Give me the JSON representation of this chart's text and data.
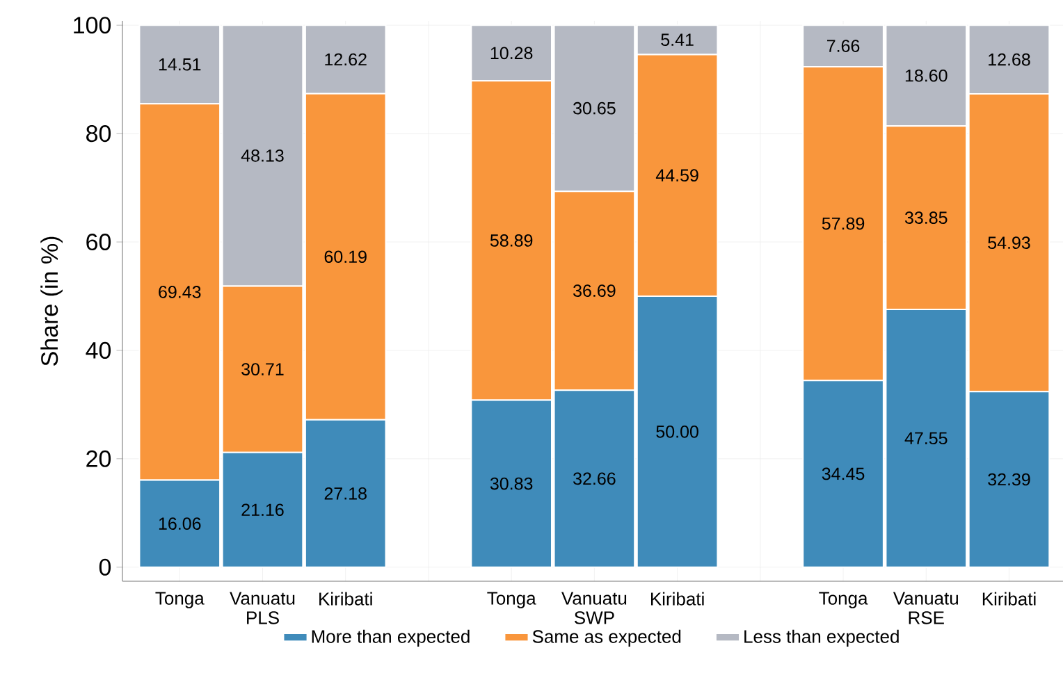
{
  "chart_data": {
    "type": "bar",
    "stacked": true,
    "ylabel": "Share (in %)",
    "categories": [
      "Tonga",
      "Vanuatu PLS",
      "Kiribati",
      null,
      "Tonga",
      "Vanuatu SWP",
      "Kiribati",
      null,
      "Tonga",
      "Vanuatu RSE",
      "Kiribati"
    ],
    "series": [
      {
        "name": "More than expected",
        "color": "#3f8bba",
        "values": [
          16.06,
          21.16,
          27.18,
          null,
          30.83,
          32.66,
          50.0,
          null,
          34.45,
          47.55,
          32.39
        ],
        "value_labels": [
          "16.06",
          "21.16",
          "27.18",
          null,
          "30.83",
          "32.66",
          "50.00",
          null,
          "34.45",
          "47.55",
          "32.39"
        ]
      },
      {
        "name": "Same as expected",
        "color": "#f9963c",
        "values": [
          69.43,
          30.71,
          60.19,
          null,
          58.89,
          36.69,
          44.59,
          null,
          57.89,
          33.85,
          54.93
        ],
        "value_labels": [
          "69.43",
          "30.71",
          "60.19",
          null,
          "58.89",
          "36.69",
          "44.59",
          null,
          "57.89",
          "33.85",
          "54.93"
        ]
      },
      {
        "name": "Less than expected",
        "color": "#b5b9c3",
        "values": [
          14.51,
          48.13,
          12.62,
          null,
          10.28,
          30.65,
          5.41,
          null,
          7.66,
          18.6,
          12.68
        ],
        "value_labels": [
          "14.51",
          "48.13",
          "12.62",
          null,
          "10.28",
          "30.65",
          "5.41",
          null,
          "7.66",
          "18.60",
          "12.68"
        ]
      }
    ],
    "ylim": [
      -2.6,
      100.8
    ],
    "yticks": [
      0,
      20,
      40,
      60,
      80,
      100
    ],
    "grid": true,
    "legend": "bottom"
  }
}
